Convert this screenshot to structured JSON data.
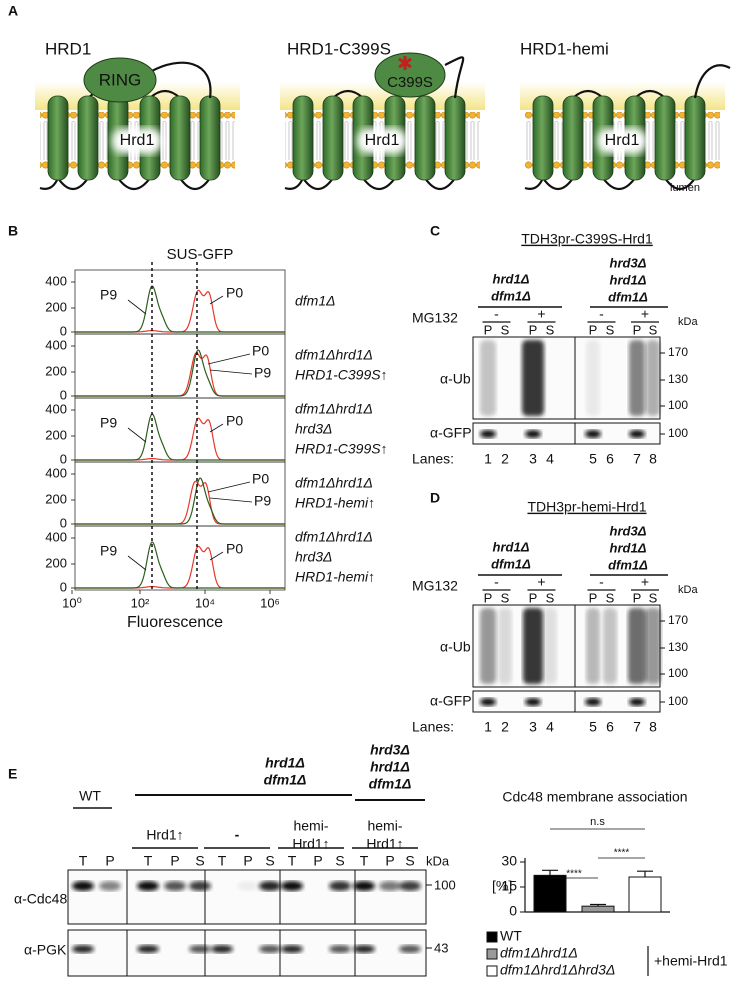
{
  "panel_labels": [
    "A",
    "B",
    "C",
    "D",
    "E"
  ],
  "panel_a": {
    "constructs": [
      "HRD1",
      "HRD1-C399S",
      "HRD1-hemi"
    ],
    "ring": "RING",
    "mutation": "C399S",
    "protein": "Hrd1",
    "lumen": "lumen"
  },
  "panel_b": {
    "title": "SUS-GFP",
    "xlabel": "Fluorescence",
    "yticks": [
      "400",
      "200",
      "0"
    ],
    "xticks": [
      "10⁰",
      "10²",
      "10⁴",
      "10⁶"
    ],
    "p0": "P0",
    "p9": "P9",
    "rows": [
      [
        "dfm1Δ"
      ],
      [
        "dfm1Δhrd1Δ",
        "HRD1-C399S↑"
      ],
      [
        "dfm1Δhrd1Δ",
        "hrd3Δ",
        "HRD1-C399S↑"
      ],
      [
        "dfm1Δhrd1Δ",
        "HRD1-hemi↑"
      ],
      [
        "dfm1Δhrd1Δ",
        "hrd3Δ",
        "HRD1-hemi↑"
      ]
    ]
  },
  "panel_c": {
    "title": "TDH3pr-C399S-Hrd1",
    "groups": [
      [
        "hrd1Δ",
        "dfm1Δ"
      ],
      [
        "hrd3Δ",
        "hrd1Δ",
        "dfm1Δ"
      ]
    ],
    "treatment": "MG132",
    "minus": "-",
    "plus": "+",
    "fractions": [
      "P",
      "S"
    ],
    "kda": "kDa",
    "markers_ub": [
      "170",
      "130",
      "100"
    ],
    "marker_gfp": "100",
    "rows": [
      "α-Ub",
      "α-GFP"
    ],
    "lanes_label": "Lanes:",
    "lanes": [
      "1",
      "2",
      "3",
      "4",
      "5",
      "6",
      "7",
      "8"
    ]
  },
  "panel_d": {
    "title": "TDH3pr-hemi-Hrd1",
    "groups": [
      [
        "hrd1Δ",
        "dfm1Δ"
      ],
      [
        "hrd3Δ",
        "hrd1Δ",
        "dfm1Δ"
      ]
    ],
    "treatment": "MG132",
    "minus": "-",
    "plus": "+",
    "fractions": [
      "P",
      "S"
    ],
    "kda": "kDa",
    "markers_ub": [
      "170",
      "130",
      "100"
    ],
    "marker_gfp": "100",
    "rows": [
      "α-Ub",
      "α-GFP"
    ],
    "lanes_label": "Lanes:",
    "lanes": [
      "1",
      "2",
      "3",
      "4",
      "5",
      "6",
      "7",
      "8"
    ]
  },
  "panel_e": {
    "wt": "WT",
    "group1": [
      "hrd1Δ",
      "dfm1Δ"
    ],
    "group2": [
      "hrd3Δ",
      "hrd1Δ",
      "dfm1Δ"
    ],
    "conditions": [
      [
        "Hrd1↑"
      ],
      [
        "-"
      ],
      [
        "hemi-",
        "Hrd1↑"
      ],
      [
        "hemi-",
        "Hrd1↑"
      ]
    ],
    "lanes": [
      [
        "T",
        "P"
      ],
      [
        "T",
        "P",
        "S"
      ],
      [
        "T",
        "P",
        "S"
      ],
      [
        "T",
        "P",
        "S"
      ],
      [
        "T",
        "P",
        "S"
      ]
    ],
    "kda": "kDa",
    "markers": [
      "100",
      "43"
    ],
    "rows": [
      "α-Cdc48",
      "α-PGK"
    ]
  },
  "chart_data": {
    "type": "bar",
    "title": "Cdc48 membrane association",
    "ylabel": "[%]",
    "categories": [
      "WT",
      "dfm1Δhrd1Δ",
      "dfm1Δhrd1Δhrd3Δ"
    ],
    "colors": [
      "#000000",
      "#9a9a9a",
      "#ffffff"
    ],
    "values": [
      22,
      3.5,
      21
    ],
    "errors": [
      3,
      1,
      3.5
    ],
    "ylim": [
      0,
      30
    ],
    "yticks": [
      0,
      15,
      30
    ],
    "significance": [
      "****",
      "n.s",
      "****"
    ],
    "legend_note": "+hemi-Hrd1"
  }
}
